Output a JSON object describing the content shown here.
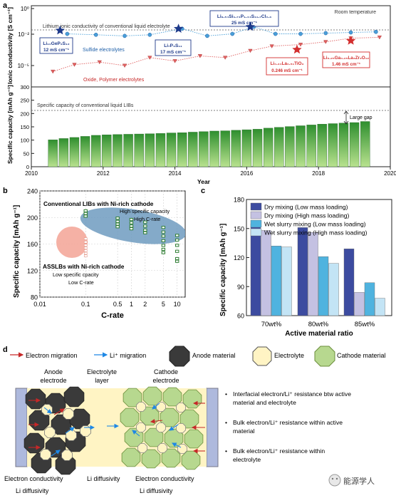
{
  "panel_labels": {
    "a": "a",
    "b": "b",
    "c": "c",
    "d": "d"
  },
  "chart_data": [
    {
      "panel": "a-top",
      "type": "scatter",
      "ylabel": "Ionic conductivity [S cm⁻¹]",
      "yscale": "log",
      "ylim": [
        1e-06,
        1
      ],
      "y_ticks": [
        "10⁰",
        "10⁻²",
        "10⁻⁵"
      ],
      "xlim": [
        2010,
        2020
      ],
      "room_temp_label": "Room temperature",
      "reference_label": "Lithium ionic conductivity of conventional liquid electrolyte",
      "reference_value": 0.02,
      "series": [
        {
          "name": "Sulfide electrolytes",
          "color": "#4a9fd8",
          "x": [
            2011.0,
            2011.8,
            2012.6,
            2013.3,
            2014.2,
            2014.9,
            2015.6,
            2016.2,
            2016.8,
            2017.5,
            2018.2,
            2018.9,
            2019.6
          ],
          "y": [
            0.006,
            0.005,
            0.004,
            0.005,
            0.017,
            0.004,
            0.006,
            0.025,
            0.006,
            0.006,
            0.007,
            0.008,
            0.009
          ]
        },
        {
          "name": "Oxide, Polymer electrolytes",
          "color": "#e06060",
          "x": [
            2010.6,
            2011.2,
            2011.9,
            2012.6,
            2013.3,
            2014.0,
            2014.7,
            2015.4,
            2016.1,
            2016.7,
            2017.5,
            2018.2,
            2018.9,
            2019.7
          ],
          "y": [
            3e-06,
            1.2e-05,
            2e-05,
            1e-05,
            5e-05,
            2.5e-05,
            7e-05,
            5e-05,
            0.0002,
            0.0005,
            0.0007,
            0.0012,
            0.0025,
            0.003
          ]
        }
      ],
      "highlights": [
        {
          "label": "Li₁₀GeP₂S₁₂",
          "value": "12 mS cm⁻¹",
          "x": 2010.8,
          "y": 0.012,
          "color": "#1e3a8a"
        },
        {
          "label": "Li₇P₃S₁₁",
          "value": "17 mS cm⁻¹",
          "x": 2014.1,
          "y": 0.017,
          "color": "#1e3a8a"
        },
        {
          "label": "Li₉.₅₄Si₁.₇₄P₁.₄₄S₁₁.₇Cl₀.₃",
          "value": "25 mS cm⁻¹",
          "x": 2016.1,
          "y": 0.025,
          "color": "#1e3a8a"
        },
        {
          "label": "Li₀.₃₄La₀.₅₁TiO₃",
          "value": "0.246 mS cm⁻¹",
          "x": 2017.4,
          "y": 0.00025,
          "color": "#d32f2f"
        },
        {
          "label": "Li₆.₂₅Ga₀.₂₅La₃Zr₂O₁₂",
          "value": "1.46 mS cm⁻¹",
          "x": 2018.9,
          "y": 0.0015,
          "color": "#d32f2f"
        }
      ]
    },
    {
      "panel": "a-bottom",
      "type": "bar",
      "ylabel": "Specific capacity [mAh g⁻¹]",
      "xlabel": "Year",
      "ylim": [
        0,
        300
      ],
      "y_ticks": [
        0,
        50,
        100,
        150,
        200,
        250,
        300
      ],
      "x_ticks": [
        2010,
        2012,
        2014,
        2016,
        2018,
        2020
      ],
      "reference_label": "Specific capacity of conventional liquid LIBs",
      "reference_value": 220,
      "gap_label": "Large gap",
      "x": [
        2010.6,
        2010.9,
        2011.2,
        2011.5,
        2011.8,
        2012.1,
        2012.4,
        2012.7,
        2013.0,
        2013.3,
        2013.6,
        2013.9,
        2014.2,
        2014.5,
        2014.8,
        2015.1,
        2015.4,
        2015.7,
        2016.0,
        2016.3,
        2016.6,
        2016.9,
        2017.2,
        2017.5,
        2017.8,
        2018.1,
        2018.4,
        2018.7,
        2019.0,
        2019.3
      ],
      "values": [
        101,
        106,
        110,
        114,
        118,
        120,
        121,
        122,
        123,
        124,
        125,
        127,
        128,
        130,
        132,
        134,
        135,
        137,
        139,
        141,
        145,
        148,
        151,
        154,
        157,
        160,
        162,
        164,
        166,
        170
      ]
    },
    {
      "panel": "b",
      "type": "scatter",
      "xlabel": "C-rate",
      "ylabel": "Specific capacity [mAh g⁻¹]",
      "xscale": "log",
      "xlim": [
        0.01,
        15
      ],
      "ylim": [
        80,
        240
      ],
      "x_tick_labels": [
        "0.01",
        "0.1",
        "0.5",
        "1",
        "2",
        "5",
        "10"
      ],
      "y_ticks": [
        80,
        120,
        160,
        200,
        240
      ],
      "annotations": {
        "conventional_title": "Conventional LIBs with Ni-rich cathode",
        "conventional_sub1": "High specific capacity",
        "conventional_sub2": "High C-rate",
        "assslb_title": "ASSLBs with Ni-rich cathode",
        "assslb_sub1": "Low specific cpacity",
        "assslb_sub2": "Low C-rate"
      },
      "series": [
        {
          "name": "Conventional LIBs",
          "color": "#2e7d32",
          "points": [
            [
              0.1,
              210
            ],
            [
              0.1,
              206
            ],
            [
              0.1,
              202
            ],
            [
              0.5,
              199
            ],
            [
              0.5,
              194
            ],
            [
              0.5,
              190
            ],
            [
              0.5,
              186
            ],
            [
              1,
              197
            ],
            [
              1,
              192
            ],
            [
              1,
              187
            ],
            [
              1,
              183
            ],
            [
              2,
              193
            ],
            [
              2,
              187
            ],
            [
              2,
              181
            ],
            [
              2,
              177
            ],
            [
              5,
              185
            ],
            [
              5,
              178
            ],
            [
              5,
              172
            ],
            [
              5,
              165
            ],
            [
              5,
              158
            ],
            [
              5,
              152
            ],
            [
              5,
              147
            ],
            [
              10,
              173
            ],
            [
              10,
              166
            ],
            [
              10,
              158
            ],
            [
              10,
              149
            ],
            [
              10,
              138
            ],
            [
              10,
              134
            ]
          ]
        },
        {
          "name": "ASSLBs",
          "color": "#ffffff",
          "points": [
            [
              0.1,
              168
            ],
            [
              0.1,
              163
            ],
            [
              0.1,
              158
            ],
            [
              0.1,
              154
            ],
            [
              0.1,
              150
            ],
            [
              0.1,
              146
            ],
            [
              0.1,
              142
            ]
          ]
        }
      ]
    },
    {
      "panel": "c",
      "type": "bar",
      "xlabel": "Active material ratio",
      "ylabel": "Specific capacity [mAh g⁻¹]",
      "ylim": [
        60,
        180
      ],
      "y_ticks": [
        60,
        90,
        120,
        150,
        180
      ],
      "categories": [
        "70wt%",
        "80wt%",
        "85wt%"
      ],
      "series": [
        {
          "name": "Dry mixing (Low mass loading)",
          "color": "#3c4ba0",
          "values": [
            155,
            151,
            129
          ]
        },
        {
          "name": "Dry mixing (High mass loading)",
          "color": "#c4c1e2",
          "values": [
            148,
            146,
            84
          ]
        },
        {
          "name": "Wet slurry  mixing (Low mass loading)",
          "color": "#4fb3df",
          "values": [
            132,
            121,
            94
          ]
        },
        {
          "name": "Wet slurry  mixing (High mass loading)",
          "color": "#c3e4f5",
          "values": [
            131,
            114,
            78
          ]
        }
      ]
    }
  ],
  "panel_d": {
    "legend": {
      "electron_migration": "Electron migration",
      "li_migration": "Li⁺ migration",
      "anode_material": "Anode material",
      "electrolyte": "Electrolyte",
      "cathode_material": "Cathode material"
    },
    "column_titles": {
      "anode_line1": "Anode",
      "anode_line2": "electrode",
      "electrolyte_line1": "Electrolyte",
      "electrolyte_line2": "layer",
      "cathode_line1": "Cathode",
      "cathode_line2": "electrode"
    },
    "bullets": [
      "Interfacial electron/Li⁺ resistance btw active material and electrolyte",
      "Bulk electron/Li⁺ resistance within active material",
      "Bulk electron/Li⁺ resistance within electrolyte"
    ],
    "bottom_labels": {
      "anode_electron": "Electron conductivity",
      "anode_li": "Li diffusivity",
      "electrolyte_li": "Li diffusivity",
      "cathode_electron": "Electron conductivity",
      "cathode_li": "Li diffusivity"
    },
    "colors": {
      "anode": "#3a3a3a",
      "electrolyte": "#fff4c4",
      "cathode": "#b7d88f",
      "collector": "#aeb9dd",
      "electron_arrow": "#c62828",
      "li_arrow": "#1e88e5"
    }
  },
  "watermark": "能源学人"
}
